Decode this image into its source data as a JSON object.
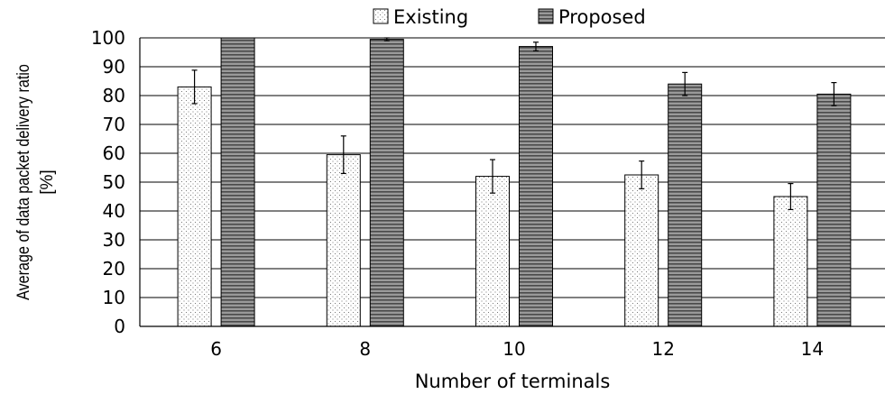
{
  "chart_data": {
    "type": "bar",
    "title": "",
    "xlabel": "Number of terminals",
    "ylabel_lines": [
      "Average of data packet delivery ratio",
      "[%]"
    ],
    "ylim": [
      0,
      100
    ],
    "ytick_step": 10,
    "grid": true,
    "legend_placement": "top-center",
    "categories": [
      "6",
      "8",
      "10",
      "12",
      "14"
    ],
    "series": [
      {
        "name": "Existing",
        "values": [
          83,
          59.5,
          52,
          52.5,
          45
        ],
        "errors": [
          5.8,
          6.5,
          5.8,
          4.8,
          4.5
        ],
        "pattern": "dots",
        "color": "#ffffff"
      },
      {
        "name": "Proposed",
        "values": [
          100,
          99.5,
          97,
          84,
          80.5
        ],
        "errors": [
          0,
          0.5,
          1.5,
          4,
          4
        ],
        "pattern": "horizontal-stripes",
        "color": "#8a8a8a"
      }
    ]
  }
}
